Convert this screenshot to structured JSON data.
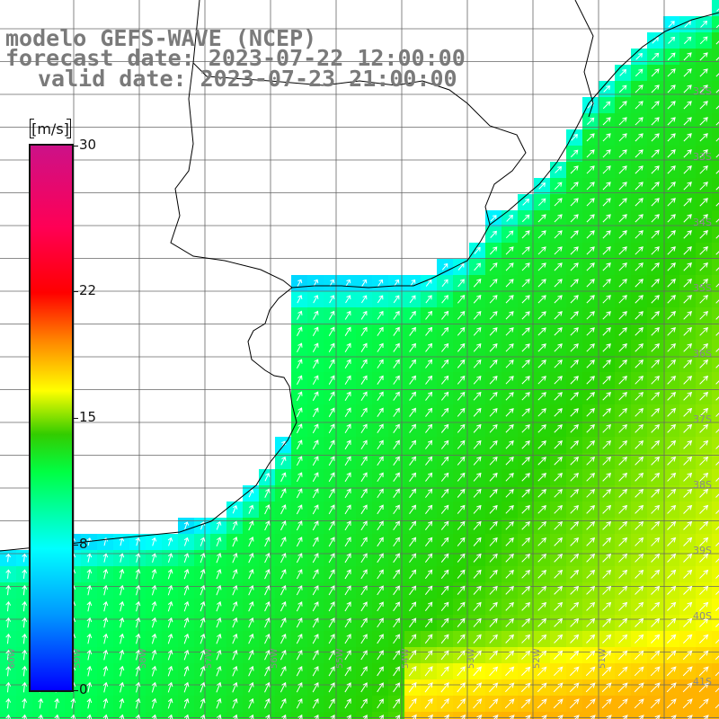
{
  "title": {
    "line1": "modelo GEFS-WAVE (NCEP)",
    "line2": "forecast date: 2023-07-22 12:00:00",
    "line3": "valid date: 2023-07-23 21:00:00"
  },
  "colorbar": {
    "unit": "[m/s]",
    "min": 0,
    "max": 30,
    "ticks": [
      "30",
      "22",
      "15",
      "8",
      "0"
    ],
    "tick_values": [
      30,
      22,
      15,
      8,
      0
    ],
    "colors": {
      "v0": "#0000ff",
      "v4": "#0099ff",
      "v8": "#00ffff",
      "v12": "#00ff44",
      "v14": "#33cc00",
      "v16": "#ffff00",
      "v19": "#ff8800",
      "v22": "#ff0000",
      "v26": "#ff0055",
      "v30": "#cc1188"
    }
  },
  "grid": {
    "lat_labels": [
      "32S",
      "33S",
      "34S",
      "35S",
      "36S",
      "37S",
      "38S",
      "39S",
      "40S",
      "41S"
    ],
    "lon_labels": [
      "60W",
      "59W",
      "58W",
      "57W",
      "56W",
      "55W",
      "54W",
      "53W",
      "52W",
      "51W"
    ]
  },
  "map": {
    "land_color": "#ffffff",
    "coastline_color": "#000000",
    "gridline_color": "#666666",
    "vector_color": "#ffffff"
  }
}
